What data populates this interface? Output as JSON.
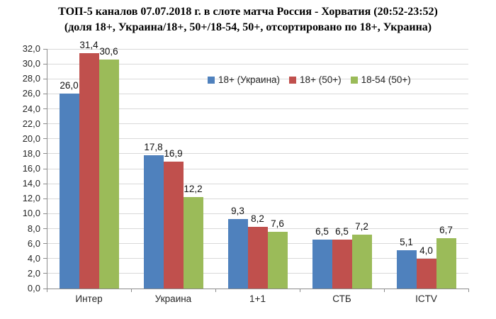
{
  "title": {
    "line1": "ТОП-5 каналов 07.07.2018 г. в слоте матча Россия - Хорватия (20:52-23:52)",
    "line2": "(доля 18+, Украина/18+, 50+/18-54, 50+, отсортировано по 18+, Украина)"
  },
  "chart_data": {
    "type": "bar",
    "categories": [
      "Интер",
      "Украина",
      "1+1",
      "СТБ",
      "ICTV"
    ],
    "series": [
      {
        "name": "18+ (Украина)",
        "color": "#4F81BD",
        "values": [
          26.0,
          17.8,
          9.3,
          6.5,
          5.1
        ]
      },
      {
        "name": "18+ (50+)",
        "color": "#C0504D",
        "values": [
          31.4,
          16.9,
          8.2,
          6.5,
          4.0
        ]
      },
      {
        "name": "18-54 (50+)",
        "color": "#9BBB59",
        "values": [
          30.6,
          12.2,
          7.6,
          7.2,
          6.7
        ]
      }
    ],
    "ylim": [
      0,
      32
    ],
    "ytick_step": 2,
    "decimal_separator": ",",
    "value_labels": true,
    "grid": true,
    "legend_position": "inside-top-right",
    "colors": {
      "grid": "#D9D9D9",
      "axis": "#8C8C8C",
      "value_label_text": "#111111",
      "tick_label_text": "#262626"
    }
  }
}
